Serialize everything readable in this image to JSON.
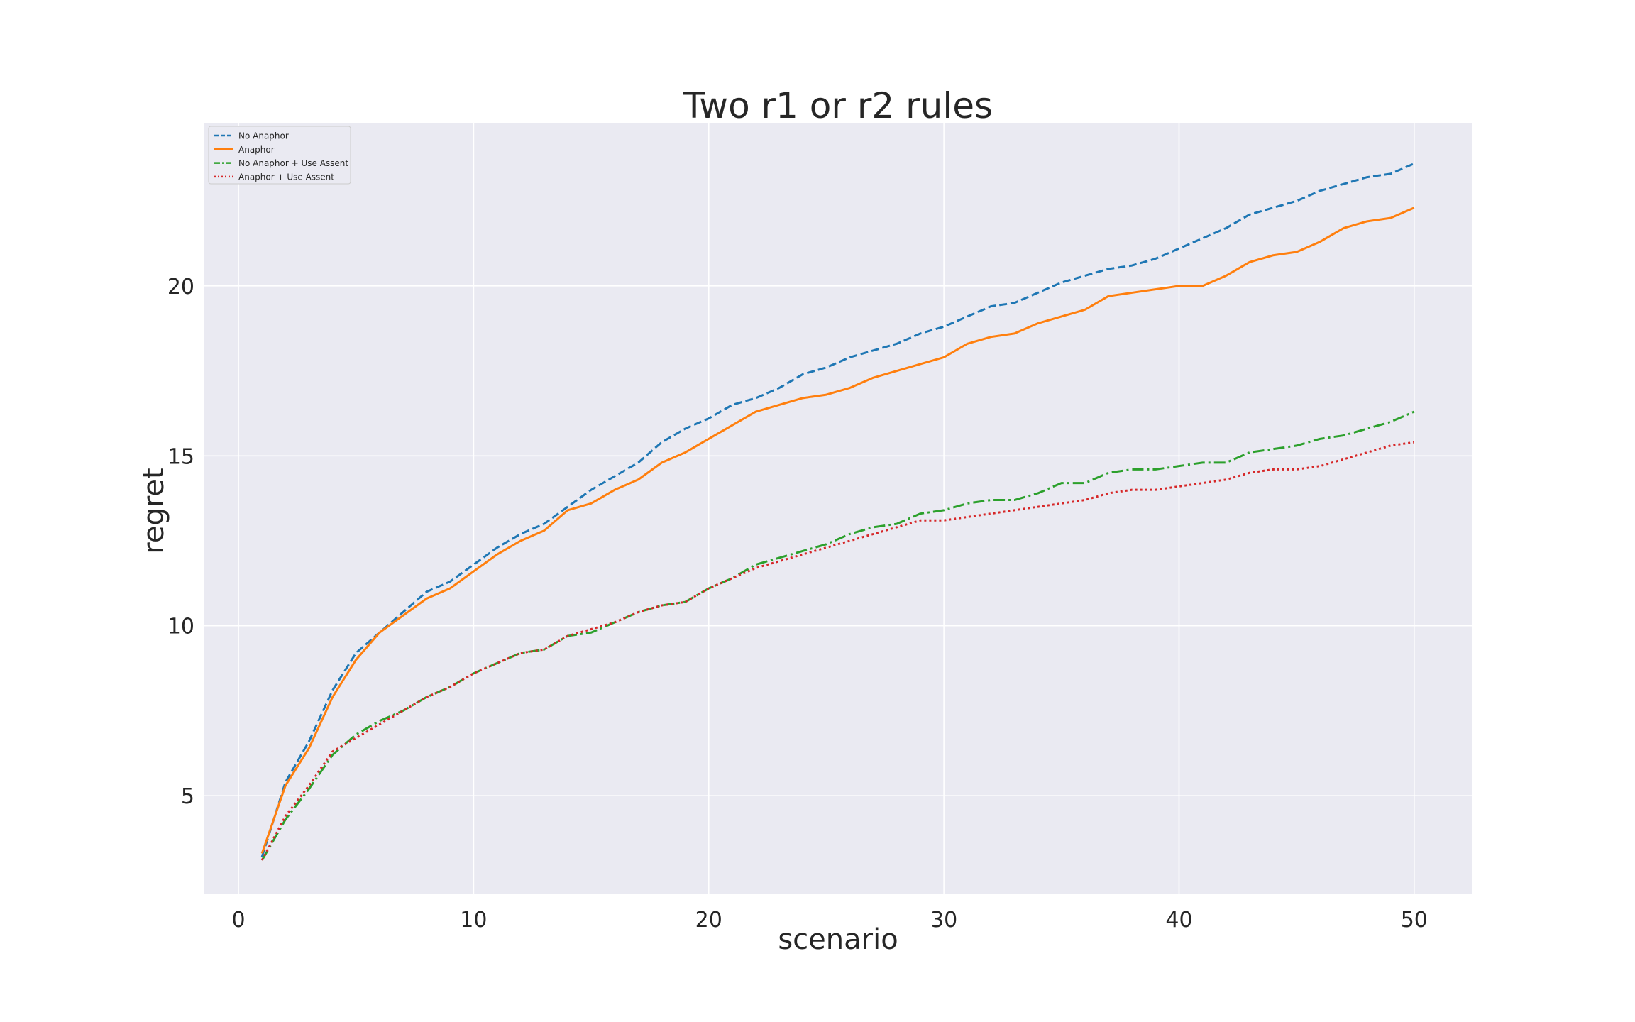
{
  "chart_data": {
    "type": "line",
    "title": "Two r1 or r2 rules",
    "xlabel": "scenario",
    "ylabel": "regret",
    "xlim": [
      -1.45,
      52.45
    ],
    "ylim": [
      2.1,
      24.8
    ],
    "xticks": [
      0,
      10,
      20,
      30,
      40,
      50
    ],
    "yticks": [
      5,
      10,
      15,
      20
    ],
    "grid": true,
    "legend_position": "top-left",
    "x": [
      1,
      2,
      3,
      4,
      5,
      6,
      7,
      8,
      9,
      10,
      11,
      12,
      13,
      14,
      15,
      16,
      17,
      18,
      19,
      20,
      21,
      22,
      23,
      24,
      25,
      26,
      27,
      28,
      29,
      30,
      31,
      32,
      33,
      34,
      35,
      36,
      37,
      38,
      39,
      40,
      41,
      42,
      43,
      44,
      45,
      46,
      47,
      48,
      49,
      50
    ],
    "series": [
      {
        "name": "No Anaphor",
        "color": "#1f77b4",
        "style": "dashed",
        "values": [
          3.2,
          5.4,
          6.6,
          8.1,
          9.2,
          9.8,
          10.4,
          11.0,
          11.3,
          11.8,
          12.3,
          12.7,
          13.0,
          13.5,
          14.0,
          14.4,
          14.8,
          15.4,
          15.8,
          16.1,
          16.5,
          16.7,
          17.0,
          17.4,
          17.6,
          17.9,
          18.1,
          18.3,
          18.6,
          18.8,
          19.1,
          19.4,
          19.5,
          19.8,
          20.1,
          20.3,
          20.5,
          20.6,
          20.8,
          21.1,
          21.4,
          21.7,
          22.1,
          22.3,
          22.5,
          22.8,
          23.0,
          23.2,
          23.3,
          23.6
        ]
      },
      {
        "name": "Anaphor",
        "color": "#ff7f0e",
        "style": "solid",
        "values": [
          3.3,
          5.3,
          6.4,
          7.9,
          9.0,
          9.8,
          10.3,
          10.8,
          11.1,
          11.6,
          12.1,
          12.5,
          12.8,
          13.4,
          13.6,
          14.0,
          14.3,
          14.8,
          15.1,
          15.5,
          15.9,
          16.3,
          16.5,
          16.7,
          16.8,
          17.0,
          17.3,
          17.5,
          17.7,
          17.9,
          18.3,
          18.5,
          18.6,
          18.9,
          19.1,
          19.3,
          19.7,
          19.8,
          19.9,
          20.0,
          20.0,
          20.3,
          20.7,
          20.9,
          21.0,
          21.3,
          21.7,
          21.9,
          22.0,
          22.3
        ]
      },
      {
        "name": "No Anaphor + Use Assent",
        "color": "#2ca02c",
        "style": "dashdot",
        "values": [
          3.1,
          4.3,
          5.2,
          6.2,
          6.8,
          7.2,
          7.5,
          7.9,
          8.2,
          8.6,
          8.9,
          9.2,
          9.3,
          9.7,
          9.8,
          10.1,
          10.4,
          10.6,
          10.7,
          11.1,
          11.4,
          11.8,
          12.0,
          12.2,
          12.4,
          12.7,
          12.9,
          13.0,
          13.3,
          13.4,
          13.6,
          13.7,
          13.7,
          13.9,
          14.2,
          14.2,
          14.5,
          14.6,
          14.6,
          14.7,
          14.8,
          14.8,
          15.1,
          15.2,
          15.3,
          15.5,
          15.6,
          15.8,
          16.0,
          16.3
        ]
      },
      {
        "name": "Anaphor + Use Assent",
        "color": "#d62728",
        "style": "dotted",
        "values": [
          3.1,
          4.4,
          5.3,
          6.3,
          6.7,
          7.1,
          7.5,
          7.9,
          8.2,
          8.6,
          8.9,
          9.2,
          9.3,
          9.7,
          9.9,
          10.1,
          10.4,
          10.6,
          10.7,
          11.1,
          11.4,
          11.7,
          11.9,
          12.1,
          12.3,
          12.5,
          12.7,
          12.9,
          13.1,
          13.1,
          13.2,
          13.3,
          13.4,
          13.5,
          13.6,
          13.7,
          13.9,
          14.0,
          14.0,
          14.1,
          14.2,
          14.3,
          14.5,
          14.6,
          14.6,
          14.7,
          14.9,
          15.1,
          15.3,
          15.4
        ]
      }
    ]
  }
}
